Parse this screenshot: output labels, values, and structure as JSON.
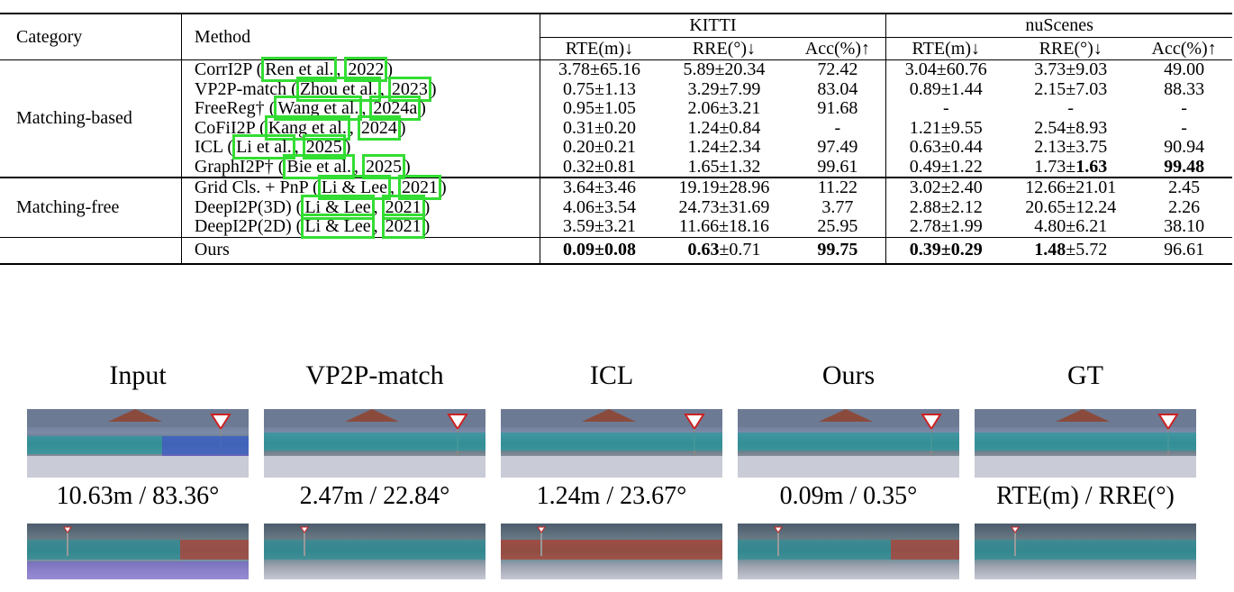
{
  "table": {
    "headers": {
      "category": "Category",
      "method": "Method",
      "kitti": "KITTI",
      "nuscenes": "nuScenes",
      "metrics": [
        "RTE(m)↓",
        "RRE(°)↓",
        "Acc(%)↑"
      ]
    },
    "groups": [
      {
        "name": "Matching-based",
        "rows": [
          {
            "method": "CorrI2P",
            "cite": [
              "Ren et al.",
              "2022"
            ],
            "k": [
              "3.78±65.16",
              "5.89±20.34",
              "72.42"
            ],
            "n": [
              "3.04±60.76",
              "3.73±9.03",
              "49.00"
            ]
          },
          {
            "method": "VP2P-match",
            "cite": [
              "Zhou et al.",
              "2023"
            ],
            "k": [
              "0.75±1.13",
              "3.29±7.99",
              "83.04"
            ],
            "n": [
              "0.89±1.44",
              "2.15±7.03",
              "88.33"
            ]
          },
          {
            "method": "FreeReg†",
            "cite": [
              "Wang et al.",
              "2024a"
            ],
            "k": [
              "0.95±1.05",
              "2.06±3.21",
              "91.68"
            ],
            "n": [
              "-",
              "-",
              "-"
            ]
          },
          {
            "method": "CoFiI2P",
            "cite": [
              "Kang et al.",
              "2024"
            ],
            "k": [
              "0.31±0.20",
              "1.24±0.84",
              "-"
            ],
            "n": [
              "1.21±9.55",
              "2.54±8.93",
              "-"
            ]
          },
          {
            "method": "ICL",
            "cite": [
              "Li et al.",
              "2025"
            ],
            "k": [
              "0.20±0.21",
              "1.24±2.34",
              "97.49"
            ],
            "n": [
              "0.63±0.44",
              "2.13±3.75",
              "90.94"
            ]
          },
          {
            "method": "GraphI2P†",
            "cite": [
              "Bie et al.",
              "2025"
            ],
            "k": [
              "0.32±0.81",
              "1.65±1.32",
              "99.61"
            ],
            "n": [
              "0.49±1.22",
              "1.73±",
              "99.48"
            ],
            "n_bold_tail": "1.63"
          }
        ]
      },
      {
        "name": "Matching-free",
        "rows": [
          {
            "method": "Grid Cls. + PnP",
            "cite": [
              "Li & Lee",
              "2021"
            ],
            "k": [
              "3.64±3.46",
              "19.19±28.96",
              "11.22"
            ],
            "n": [
              "3.02±2.40",
              "12.66±21.01",
              "2.45"
            ]
          },
          {
            "method": "DeepI2P(3D)",
            "cite": [
              "Li & Lee",
              "2021"
            ],
            "k": [
              "4.06±3.54",
              "24.73±31.69",
              "3.77"
            ],
            "n": [
              "2.88±2.12",
              "20.65±12.24",
              "2.26"
            ]
          },
          {
            "method": "DeepI2P(2D)",
            "cite": [
              "Li & Lee",
              "2021"
            ],
            "k": [
              "3.59±3.21",
              "11.66±18.16",
              "25.95"
            ],
            "n": [
              "2.78±1.99",
              "4.80±6.21",
              "38.10"
            ]
          }
        ]
      }
    ],
    "ours": {
      "method": "Ours",
      "k_rte": "0.09±0.08",
      "k_rre_bold": "0.63",
      "k_rre_rest": "±0.71",
      "k_acc": "99.75",
      "n_rte": "0.39±0.29",
      "n_rre_bold": "1.48",
      "n_rre_rest": "±5.72",
      "n_acc": "96.61"
    }
  },
  "figure": {
    "columns": [
      "Input",
      "VP2P-match",
      "ICL",
      "Ours",
      "GT"
    ],
    "errors_row1": [
      "10.63m / 83.36°",
      "2.47m / 22.84°",
      "1.24m / 23.67°",
      "0.09m / 0.35°",
      "RTE(m) / RRE(°)"
    ]
  }
}
